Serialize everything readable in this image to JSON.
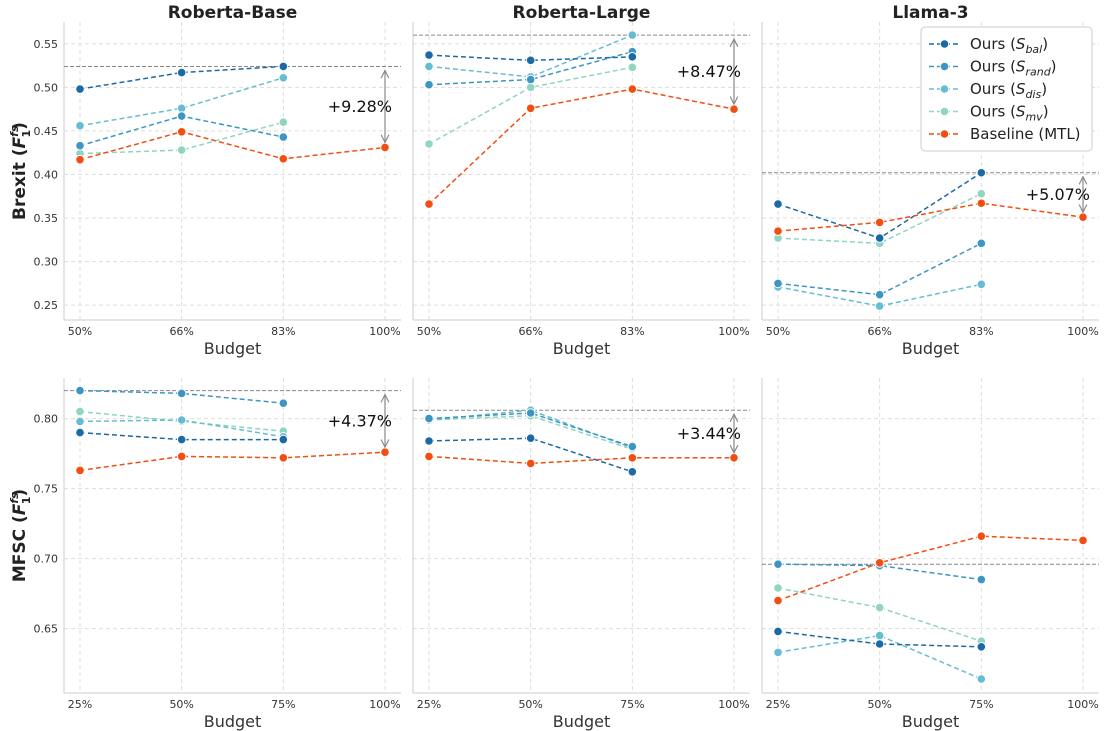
{
  "colors": {
    "ours_bal": "#1a6aa6",
    "ours_rand": "#3d95c4",
    "ours_dis": "#66bdd3",
    "ours_mv": "#8fd5c2",
    "baseline": "#f24e12",
    "ref_line": "#888888",
    "grid": "#dddddd",
    "spine": "#cccccc"
  },
  "legend": {
    "entries": [
      {
        "key": "ours_bal",
        "prefix": "Ours (",
        "sym": "S",
        "sub": "bal",
        "suffix": ")"
      },
      {
        "key": "ours_rand",
        "prefix": "Ours (",
        "sym": "S",
        "sub": "rand",
        "suffix": ")"
      },
      {
        "key": "ours_dis",
        "prefix": "Ours (",
        "sym": "S",
        "sub": "dis",
        "suffix": ")"
      },
      {
        "key": "ours_mv",
        "prefix": "Ours (",
        "sym": "S",
        "sub": "mv",
        "suffix": ")"
      },
      {
        "key": "baseline",
        "prefix": "Baseline (MTL)",
        "sym": "",
        "sub": "",
        "suffix": ""
      }
    ]
  },
  "rows": [
    {
      "label": "Brexit",
      "metric": "F",
      "sup": "fs",
      "sub": "1",
      "x_title": "Budget"
    },
    {
      "label": "MFSC",
      "metric": "F",
      "sup": "fs",
      "sub": "1",
      "x_title": "Budget"
    }
  ],
  "chart_data": [
    {
      "type": "line",
      "title": "Roberta-Base",
      "row": 0,
      "col": 0,
      "categories": [
        "50%",
        "66%",
        "83%",
        "100%"
      ],
      "ylim": [
        0.233,
        0.575
      ],
      "yticks": [
        "0.25",
        "0.30",
        "0.35",
        "0.40",
        "0.45",
        "0.50",
        "0.55"
      ],
      "reference": 0.524,
      "annotation": "+9.28%",
      "anno_from": 0.431,
      "anno_to": 0.524,
      "series": [
        {
          "key": "ours_bal",
          "values": [
            0.498,
            0.517,
            0.524,
            null
          ]
        },
        {
          "key": "ours_rand",
          "values": [
            0.433,
            0.467,
            0.443,
            null
          ]
        },
        {
          "key": "ours_dis",
          "values": [
            0.456,
            0.476,
            0.511,
            null
          ]
        },
        {
          "key": "ours_mv",
          "values": [
            0.424,
            0.428,
            0.46,
            null
          ]
        },
        {
          "key": "baseline",
          "values": [
            0.417,
            0.449,
            0.418,
            0.431
          ]
        }
      ],
      "xlabel": "Budget",
      "grid": true
    },
    {
      "type": "line",
      "title": "Roberta-Large",
      "row": 0,
      "col": 1,
      "categories": [
        "50%",
        "66%",
        "83%",
        "100%"
      ],
      "ylim": [
        0.233,
        0.575
      ],
      "yticks": [],
      "reference": 0.56,
      "annotation": "+8.47%",
      "anno_from": 0.475,
      "anno_to": 0.56,
      "series": [
        {
          "key": "ours_bal",
          "values": [
            0.537,
            0.531,
            0.535,
            null
          ]
        },
        {
          "key": "ours_rand",
          "values": [
            0.503,
            0.509,
            0.541,
            null
          ]
        },
        {
          "key": "ours_dis",
          "values": [
            0.524,
            0.512,
            0.56,
            null
          ]
        },
        {
          "key": "ours_mv",
          "values": [
            0.435,
            0.5,
            0.523,
            null
          ]
        },
        {
          "key": "baseline",
          "values": [
            0.366,
            0.476,
            0.498,
            0.475
          ]
        }
      ],
      "xlabel": "Budget",
      "grid": true
    },
    {
      "type": "line",
      "title": "Llama-3",
      "row": 0,
      "col": 2,
      "categories": [
        "50%",
        "66%",
        "83%",
        "100%"
      ],
      "ylim": [
        0.233,
        0.575
      ],
      "yticks": [],
      "reference": 0.402,
      "annotation": "+5.07%",
      "anno_from": 0.351,
      "anno_to": 0.402,
      "series": [
        {
          "key": "ours_bal",
          "values": [
            0.366,
            0.327,
            0.402,
            null
          ]
        },
        {
          "key": "ours_rand",
          "values": [
            0.275,
            0.262,
            0.321,
            null
          ]
        },
        {
          "key": "ours_dis",
          "values": [
            0.271,
            0.249,
            0.274,
            null
          ]
        },
        {
          "key": "ours_mv",
          "values": [
            0.327,
            0.321,
            0.378,
            null
          ]
        },
        {
          "key": "baseline",
          "values": [
            0.335,
            0.345,
            0.367,
            0.351
          ]
        }
      ],
      "xlabel": "Budget",
      "grid": true
    },
    {
      "type": "line",
      "title": "",
      "row": 1,
      "col": 0,
      "categories": [
        "25%",
        "50%",
        "75%",
        "100%"
      ],
      "ylim": [
        0.604,
        0.829
      ],
      "yticks": [
        "0.65",
        "0.70",
        "0.75",
        "0.80"
      ],
      "reference": 0.82,
      "annotation": "+4.37%",
      "anno_from": 0.776,
      "anno_to": 0.82,
      "series": [
        {
          "key": "ours_bal",
          "values": [
            0.79,
            0.785,
            0.785,
            null
          ]
        },
        {
          "key": "ours_rand",
          "values": [
            0.82,
            0.818,
            0.811,
            null
          ]
        },
        {
          "key": "ours_dis",
          "values": [
            0.798,
            0.799,
            0.787,
            null
          ]
        },
        {
          "key": "ours_mv",
          "values": [
            0.805,
            0.798,
            0.791,
            null
          ]
        },
        {
          "key": "baseline",
          "values": [
            0.763,
            0.773,
            0.772,
            0.776
          ]
        }
      ],
      "xlabel": "Budget",
      "grid": true
    },
    {
      "type": "line",
      "title": "",
      "row": 1,
      "col": 1,
      "categories": [
        "25%",
        "50%",
        "75%",
        "100%"
      ],
      "ylim": [
        0.604,
        0.829
      ],
      "yticks": [],
      "reference": 0.806,
      "annotation": "+3.44%",
      "anno_from": 0.772,
      "anno_to": 0.806,
      "series": [
        {
          "key": "ours_bal",
          "values": [
            0.784,
            0.786,
            0.762,
            null
          ]
        },
        {
          "key": "ours_rand",
          "values": [
            0.8,
            0.804,
            0.78,
            null
          ]
        },
        {
          "key": "ours_dis",
          "values": [
            0.799,
            0.806,
            0.779,
            null
          ]
        },
        {
          "key": "ours_mv",
          "values": [
            0.799,
            0.802,
            0.778,
            null
          ]
        },
        {
          "key": "baseline",
          "values": [
            0.773,
            0.768,
            0.772,
            0.772
          ]
        }
      ],
      "xlabel": "Budget",
      "grid": true
    },
    {
      "type": "line",
      "title": "",
      "row": 1,
      "col": 2,
      "categories": [
        "25%",
        "50%",
        "75%",
        "100%"
      ],
      "ylim": [
        0.604,
        0.829
      ],
      "yticks": [],
      "reference": 0.696,
      "annotation": "",
      "anno_from": null,
      "anno_to": null,
      "series": [
        {
          "key": "ours_bal",
          "values": [
            0.648,
            0.639,
            0.637,
            null
          ]
        },
        {
          "key": "ours_rand",
          "values": [
            0.696,
            0.695,
            0.685,
            null
          ]
        },
        {
          "key": "ours_dis",
          "values": [
            0.633,
            0.645,
            0.614,
            null
          ]
        },
        {
          "key": "ours_mv",
          "values": [
            0.679,
            0.665,
            0.641,
            null
          ]
        },
        {
          "key": "baseline",
          "values": [
            0.67,
            0.697,
            0.716,
            0.713
          ]
        }
      ],
      "xlabel": "Budget",
      "grid": true
    }
  ]
}
